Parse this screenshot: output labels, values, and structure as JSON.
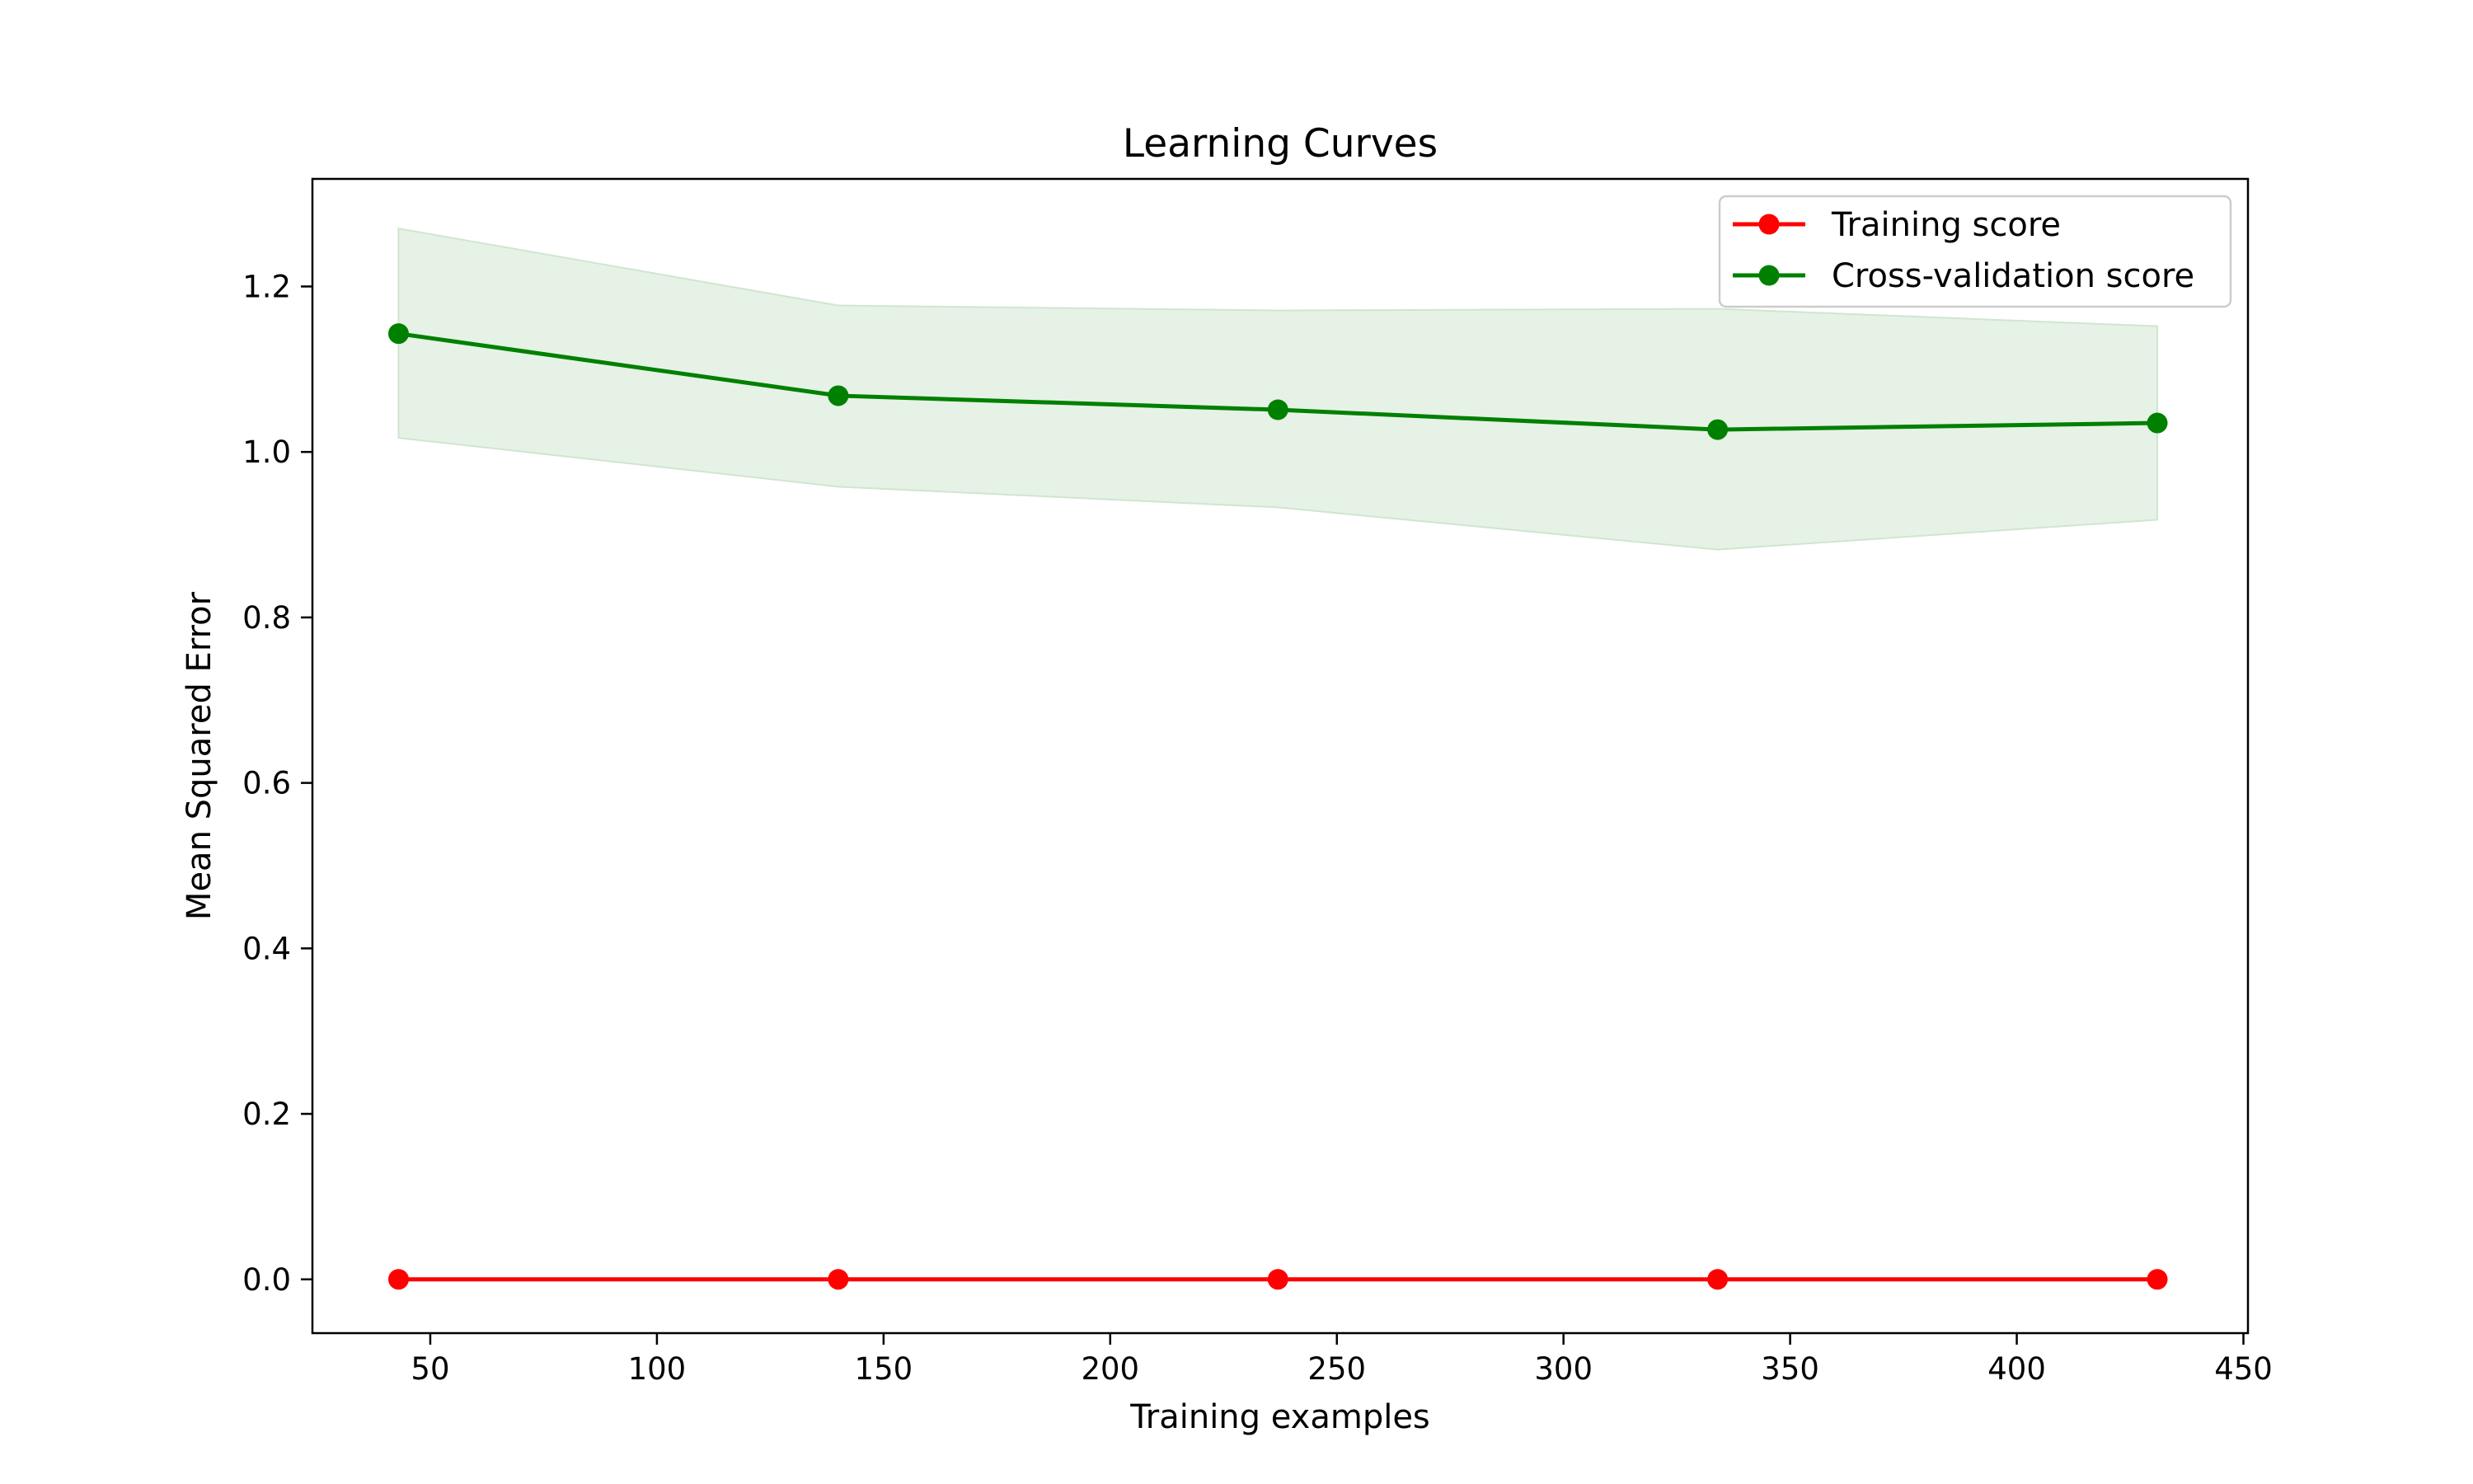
{
  "chart_data": {
    "type": "line",
    "title": "Learning Curves",
    "xlabel": "Training examples",
    "ylabel": "Mean Squared Error",
    "xlim": [
      24,
      451
    ],
    "ylim": [
      -0.065,
      1.33
    ],
    "x_ticks": [
      50,
      100,
      150,
      200,
      250,
      300,
      350,
      400,
      450
    ],
    "y_ticks": [
      0.0,
      0.2,
      0.4,
      0.6,
      0.8,
      1.0,
      1.2
    ],
    "x_tick_labels": [
      "50",
      "100",
      "150",
      "200",
      "250",
      "300",
      "350",
      "400",
      "450"
    ],
    "y_tick_labels": [
      "0.0",
      "0.2",
      "0.4",
      "0.6",
      "0.8",
      "1.0",
      "1.2"
    ],
    "grid": false,
    "legend_position": "top-right",
    "x": [
      43,
      140,
      237,
      334,
      431
    ],
    "series": [
      {
        "name": "Training score",
        "color": "#ff0000",
        "values": [
          0.0,
          0.0,
          0.0,
          0.0,
          0.0
        ],
        "band_upper": [
          0.0,
          0.0,
          0.0,
          0.0,
          0.0
        ],
        "band_lower": [
          0.0,
          0.0,
          0.0,
          0.0,
          0.0
        ]
      },
      {
        "name": "Cross-validation score",
        "color": "#008000",
        "band_color": "#e6f2e6",
        "values": [
          1.143,
          1.068,
          1.051,
          1.027,
          1.035
        ],
        "band_upper": [
          1.27,
          1.177,
          1.171,
          1.173,
          1.152
        ],
        "band_lower": [
          1.017,
          0.958,
          0.933,
          0.882,
          0.918
        ]
      }
    ]
  }
}
